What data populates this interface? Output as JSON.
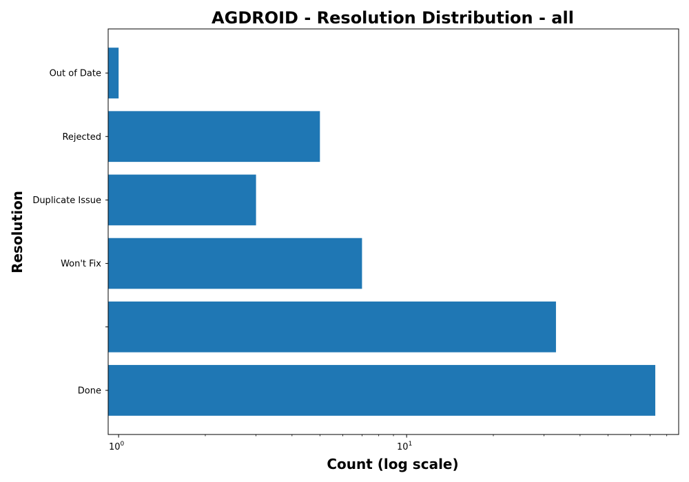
{
  "chart_data": {
    "type": "bar",
    "orientation": "horizontal",
    "title": "AGDROID - Resolution Distribution - all",
    "xlabel": "Count (log scale)",
    "ylabel": "Resolution",
    "x_scale": "log",
    "xlim": [
      0.92,
      88
    ],
    "x_major_ticks": [
      {
        "value": 1,
        "base": "10",
        "exponent": "0"
      },
      {
        "value": 10,
        "base": "10",
        "exponent": "1"
      }
    ],
    "x_minor_ticks": [
      2,
      3,
      4,
      5,
      6,
      7,
      8,
      9,
      20,
      30,
      40,
      50,
      60,
      70,
      80
    ],
    "categories": [
      "Done",
      "",
      "Won't Fix",
      "Duplicate Issue",
      "Rejected",
      "Out of Date"
    ],
    "values": [
      73,
      33,
      7,
      3,
      5,
      1
    ],
    "bar_color": "#1f77b4",
    "grid": false,
    "legend": "none"
  }
}
